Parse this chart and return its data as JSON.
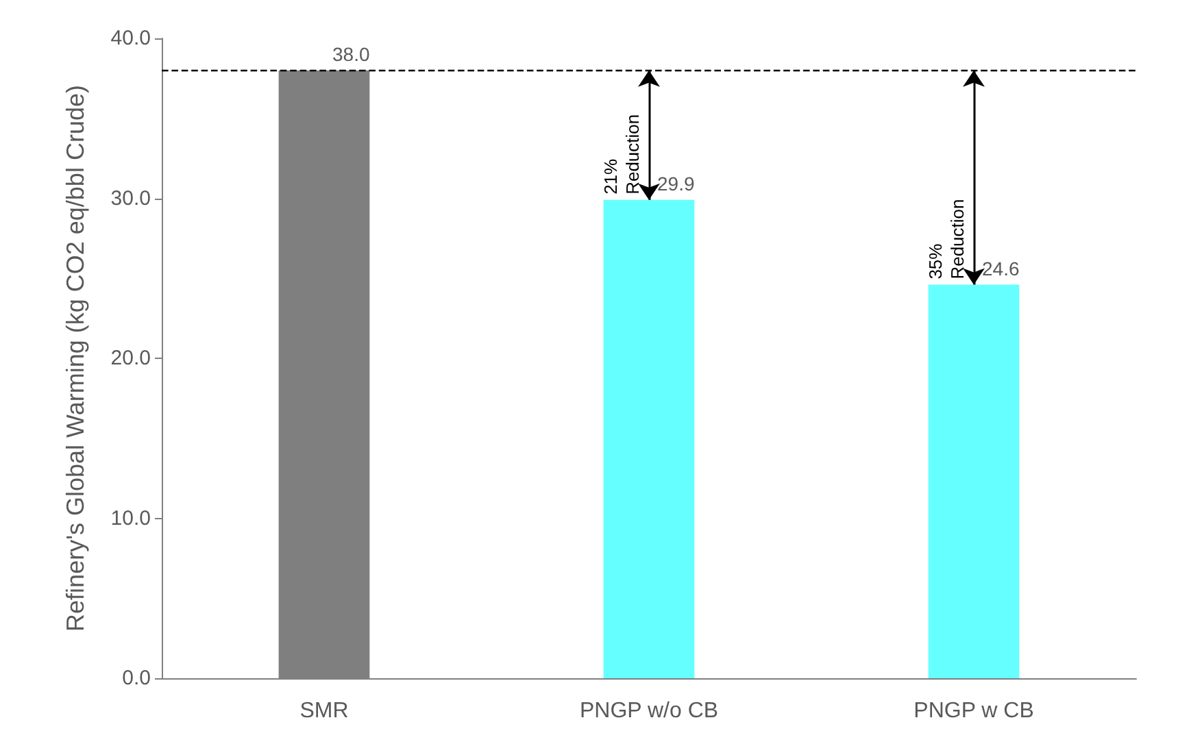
{
  "chart_data": {
    "type": "bar",
    "ylabel": "Refinery's Global Warming (kg CO2 eq/bbl Crude)",
    "categories": [
      "SMR",
      "PNGP w/o CB",
      "PNGP w CB"
    ],
    "values": [
      38.0,
      29.9,
      24.6
    ],
    "colors": [
      "#7f7f7f",
      "#66ffff",
      "#66ffff"
    ],
    "value_labels": [
      "38.0",
      "29.9",
      "24.6"
    ],
    "ylim": [
      0,
      40
    ],
    "yticks": [
      {
        "value": 0,
        "label": "0.0"
      },
      {
        "value": 10,
        "label": "10.0"
      },
      {
        "value": 20,
        "label": "20.0"
      },
      {
        "value": 30,
        "label": "30.0"
      },
      {
        "value": 40,
        "label": "40.0"
      }
    ],
    "grid": false,
    "ref_lines": [
      {
        "axis": "y",
        "value": 38.0,
        "color": "#000000",
        "line_style": "dashed"
      }
    ],
    "annotations": [
      {
        "text": "21% Reduction",
        "x": "PNGP w/o CB",
        "y": 29.9
      },
      {
        "text": "35% Reduction",
        "x": "PNGP w CB",
        "y": 24.6
      }
    ]
  }
}
